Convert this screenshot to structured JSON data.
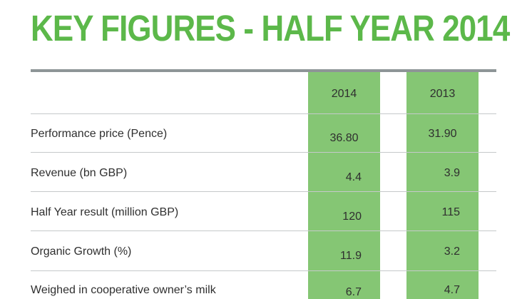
{
  "title": "KEY FIGURES - HALF YEAR 2014",
  "columns": [
    "2014",
    "2013"
  ],
  "rows": [
    {
      "label": "Performance price (Pence)",
      "v2014": "36.80",
      "v2013": "31.90"
    },
    {
      "label": "Revenue (bn GBP)",
      "v2014": "4.4",
      "v2013": "3.9"
    },
    {
      "label": "Half Year result (million GBP)",
      "v2014": "120",
      "v2013": "115"
    },
    {
      "label": "Organic Growth (%)",
      "v2014": "11.9",
      "v2013": "3.2"
    },
    {
      "label": "Weighed in cooperative owner’s milk",
      "v2014": "6.7",
      "v2013": "4.7"
    }
  ],
  "colors": {
    "title": "#5cb84a",
    "column_highlight": "#85c674",
    "top_rule": "#8e9597",
    "row_rule": "#c5c9ca",
    "text": "#2f2f2f"
  }
}
